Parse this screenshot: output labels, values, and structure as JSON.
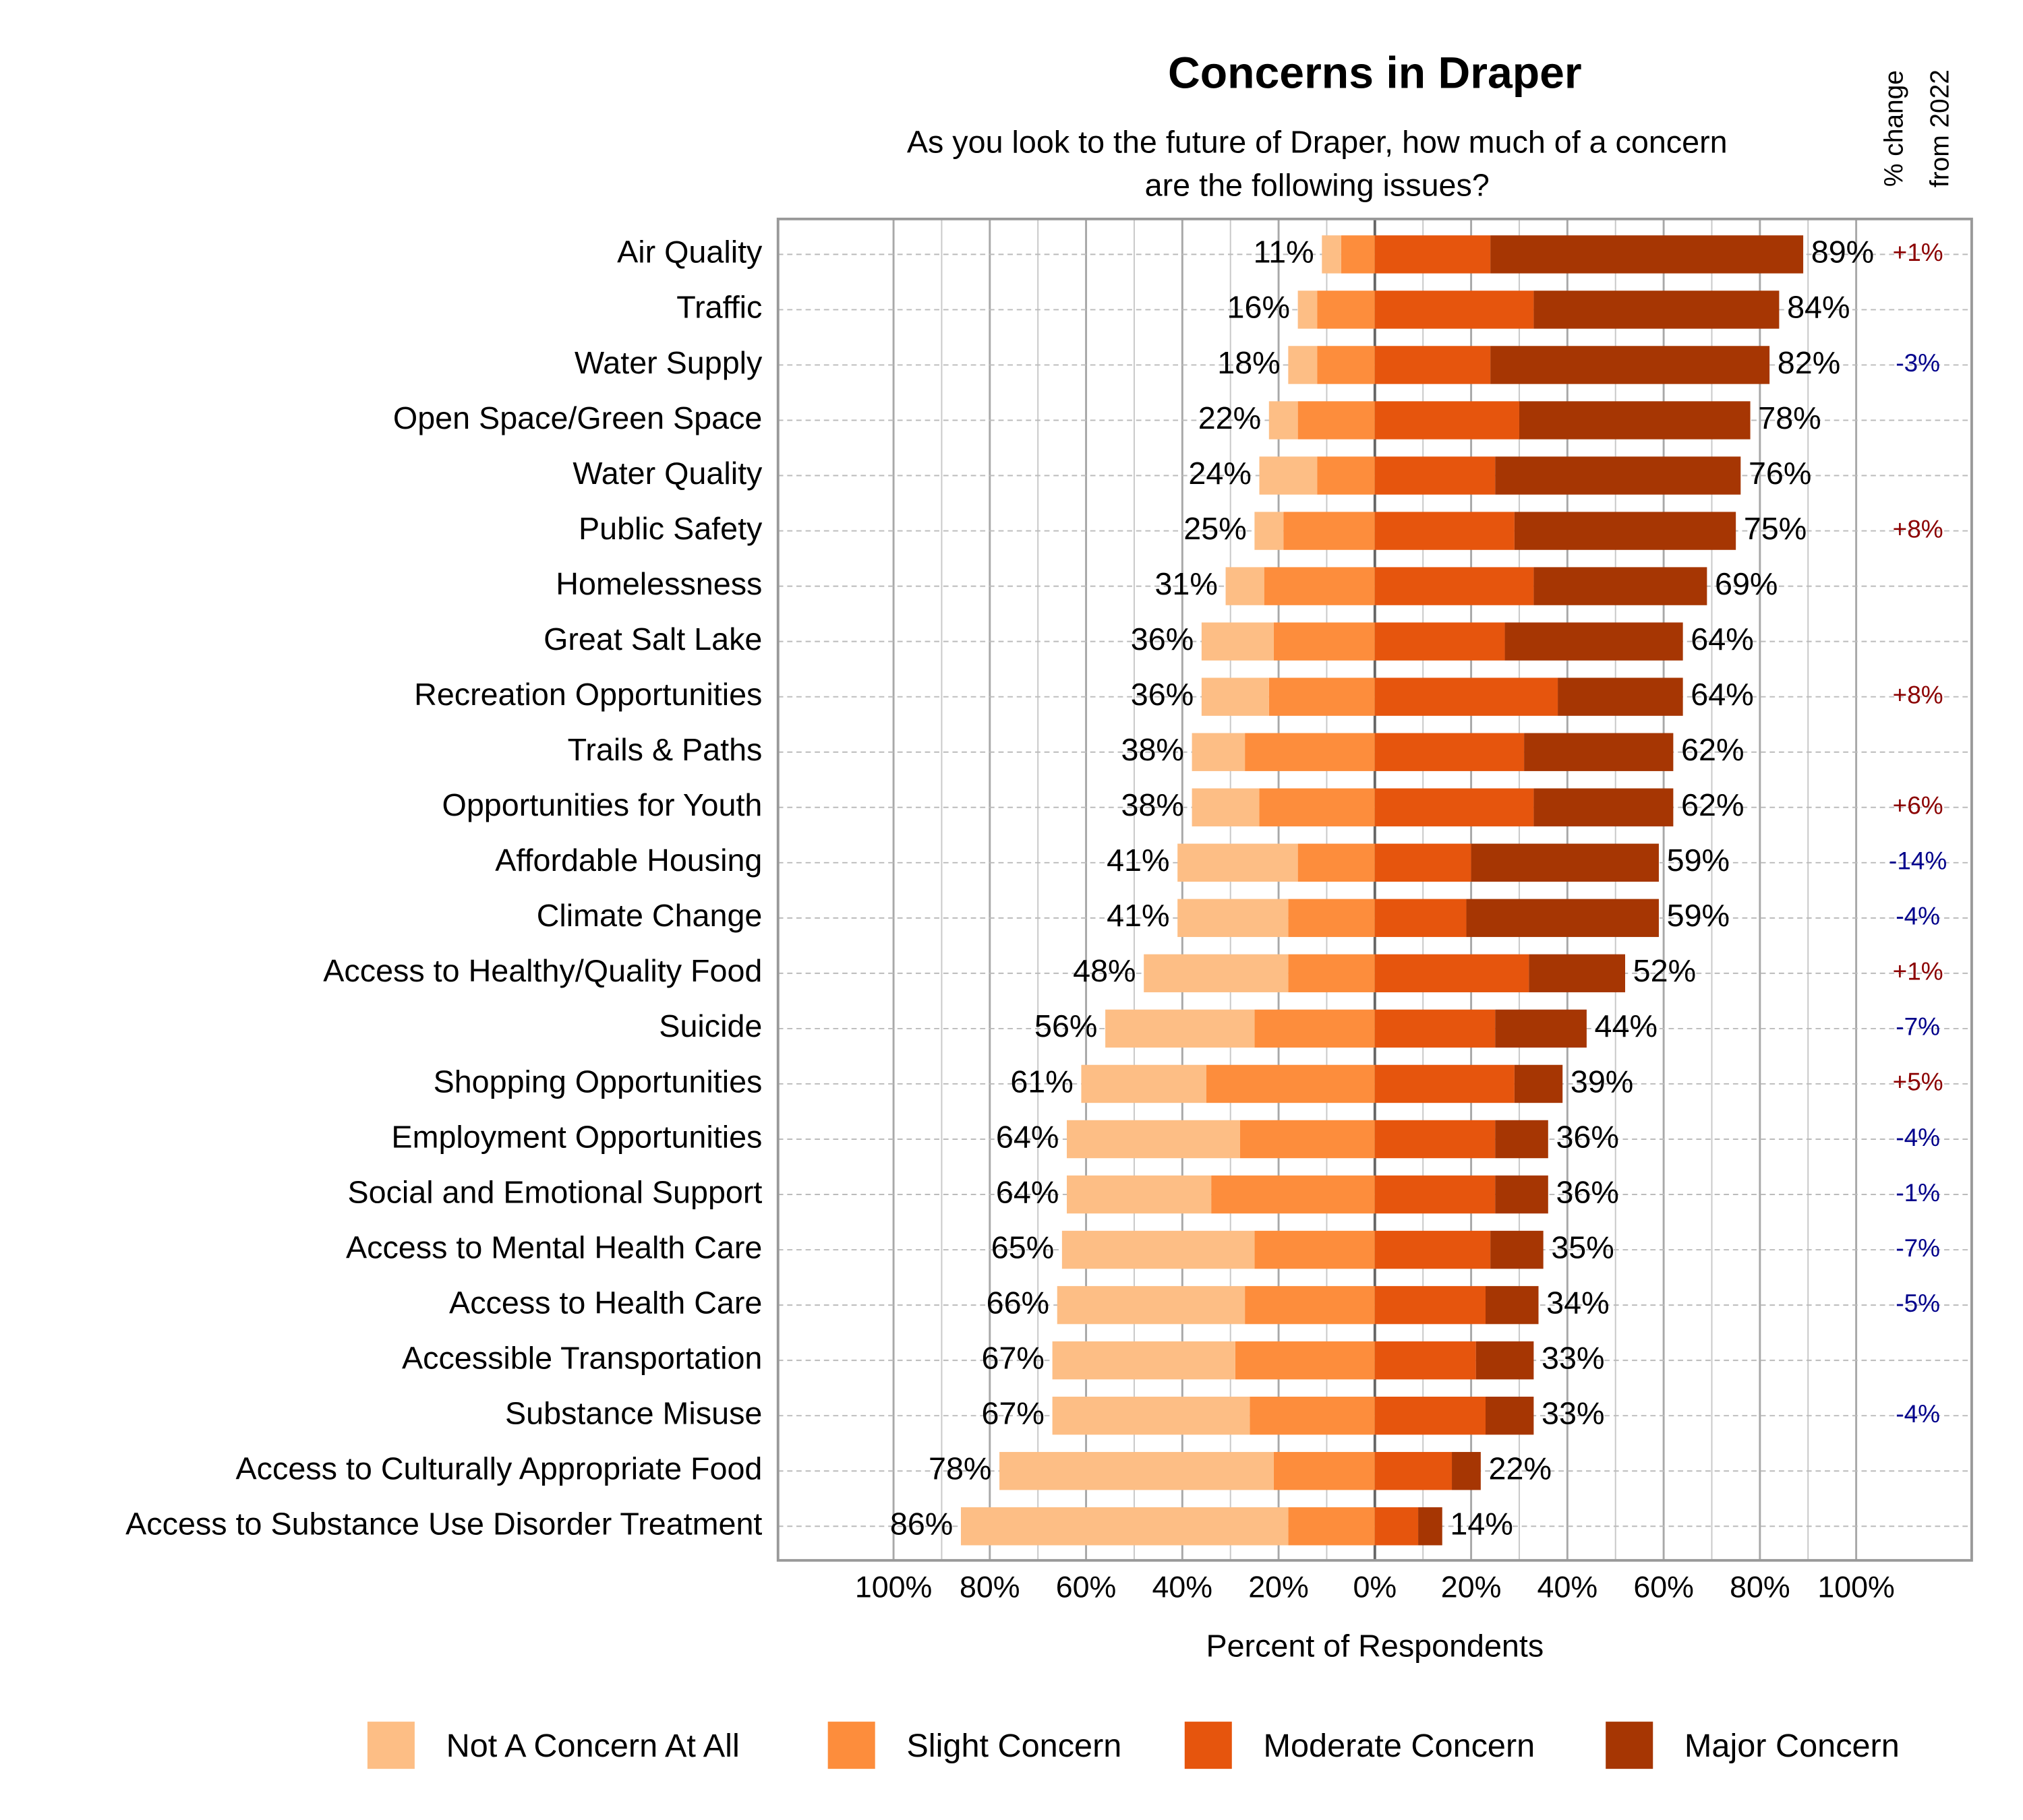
{
  "chart_data": {
    "type": "diverging_bar",
    "title": "Concerns in Draper",
    "subtitle": [
      "As you look to the future of Draper, how much of a concern",
      "are the following issues?"
    ],
    "x_label": "Percent of Respondents",
    "categories": [
      "Air Quality",
      "Traffic",
      "Water Supply",
      "Open Space/Green Space",
      "Water Quality",
      "Public Safety",
      "Homelessness",
      "Great Salt Lake",
      "Recreation Opportunities",
      "Trails & Paths",
      "Opportunities for Youth",
      "Affordable Housing",
      "Climate Change",
      "Access to Healthy/Quality Food",
      "Suicide",
      "Shopping Opportunities",
      "Employment Opportunities",
      "Social and Emotional Support",
      "Access to Mental Health Care",
      "Access to Health Care",
      "Accessible Transportation",
      "Substance Misuse",
      "Access to Culturally Appropriate Food",
      "Access to Substance Use Disorder Treatment"
    ],
    "series": [
      {
        "name": "Not A Concern At All",
        "color": "#fdbe85",
        "side": "left",
        "values": [
          4,
          4,
          6,
          6,
          12,
          6,
          8,
          15,
          14,
          11,
          14,
          25,
          23,
          30,
          31,
          26,
          36,
          30,
          40,
          39,
          38,
          41,
          57,
          68
        ]
      },
      {
        "name": "Slight Concern",
        "color": "#fd8d3c",
        "side": "left",
        "values": [
          7,
          12,
          12,
          16,
          12,
          19,
          23,
          21,
          22,
          27,
          24,
          16,
          18,
          18,
          25,
          35,
          28,
          34,
          25,
          27,
          29,
          26,
          21,
          18
        ]
      },
      {
        "name": "Moderate Concern",
        "color": "#e6550d",
        "side": "right",
        "values": [
          24,
          33,
          24,
          30,
          25,
          29,
          33,
          27,
          38,
          31,
          33,
          20,
          19,
          32,
          25,
          29,
          25,
          25,
          24,
          23,
          21,
          23,
          16,
          9
        ]
      },
      {
        "name": "Major Concern",
        "color": "#a63603",
        "side": "right",
        "values": [
          65,
          51,
          58,
          48,
          51,
          46,
          36,
          37,
          26,
          31,
          29,
          39,
          40,
          20,
          19,
          10,
          11,
          11,
          11,
          11,
          12,
          10,
          6,
          5
        ]
      }
    ],
    "left_total_labels": [
      "11%",
      "16%",
      "18%",
      "22%",
      "24%",
      "25%",
      "31%",
      "36%",
      "36%",
      "38%",
      "38%",
      "41%",
      "41%",
      "48%",
      "56%",
      "61%",
      "64%",
      "64%",
      "65%",
      "66%",
      "67%",
      "67%",
      "78%",
      "86%"
    ],
    "right_total_labels": [
      "89%",
      "84%",
      "82%",
      "78%",
      "76%",
      "75%",
      "69%",
      "64%",
      "64%",
      "62%",
      "62%",
      "59%",
      "59%",
      "52%",
      "44%",
      "39%",
      "36%",
      "36%",
      "35%",
      "34%",
      "33%",
      "33%",
      "22%",
      "14%"
    ],
    "change": {
      "title": [
        "% change",
        "from 2022"
      ],
      "positive_color": "#8b0000",
      "negative_color": "#00008b",
      "values": [
        1,
        null,
        -3,
        null,
        null,
        8,
        null,
        null,
        8,
        null,
        6,
        -14,
        -4,
        1,
        -7,
        5,
        -4,
        -1,
        -7,
        -5,
        null,
        -4,
        null,
        null
      ],
      "value_labels": [
        "+1%",
        null,
        "-3%",
        null,
        null,
        "+8%",
        null,
        null,
        "+8%",
        null,
        "+6%",
        "-14%",
        "-4%",
        "+1%",
        "-7%",
        "+5%",
        "-4%",
        "-1%",
        "-7%",
        "-5%",
        null,
        "-4%",
        null,
        null
      ]
    },
    "xlim": [
      -124,
      124
    ],
    "xticks": [
      {
        "value": -100,
        "label": "100%"
      },
      {
        "value": -80,
        "label": "80%"
      },
      {
        "value": -60,
        "label": "60%"
      },
      {
        "value": -40,
        "label": "40%"
      },
      {
        "value": -20,
        "label": "20%"
      },
      {
        "value": 0,
        "label": "0%"
      },
      {
        "value": 20,
        "label": "20%"
      },
      {
        "value": 40,
        "label": "40%"
      },
      {
        "value": 60,
        "label": "60%"
      },
      {
        "value": 80,
        "label": "80%"
      },
      {
        "value": 100,
        "label": "100%"
      }
    ],
    "xticks_minor": [
      -90,
      -70,
      -50,
      -30,
      -10,
      10,
      30,
      50,
      70,
      90
    ],
    "grid": true
  }
}
